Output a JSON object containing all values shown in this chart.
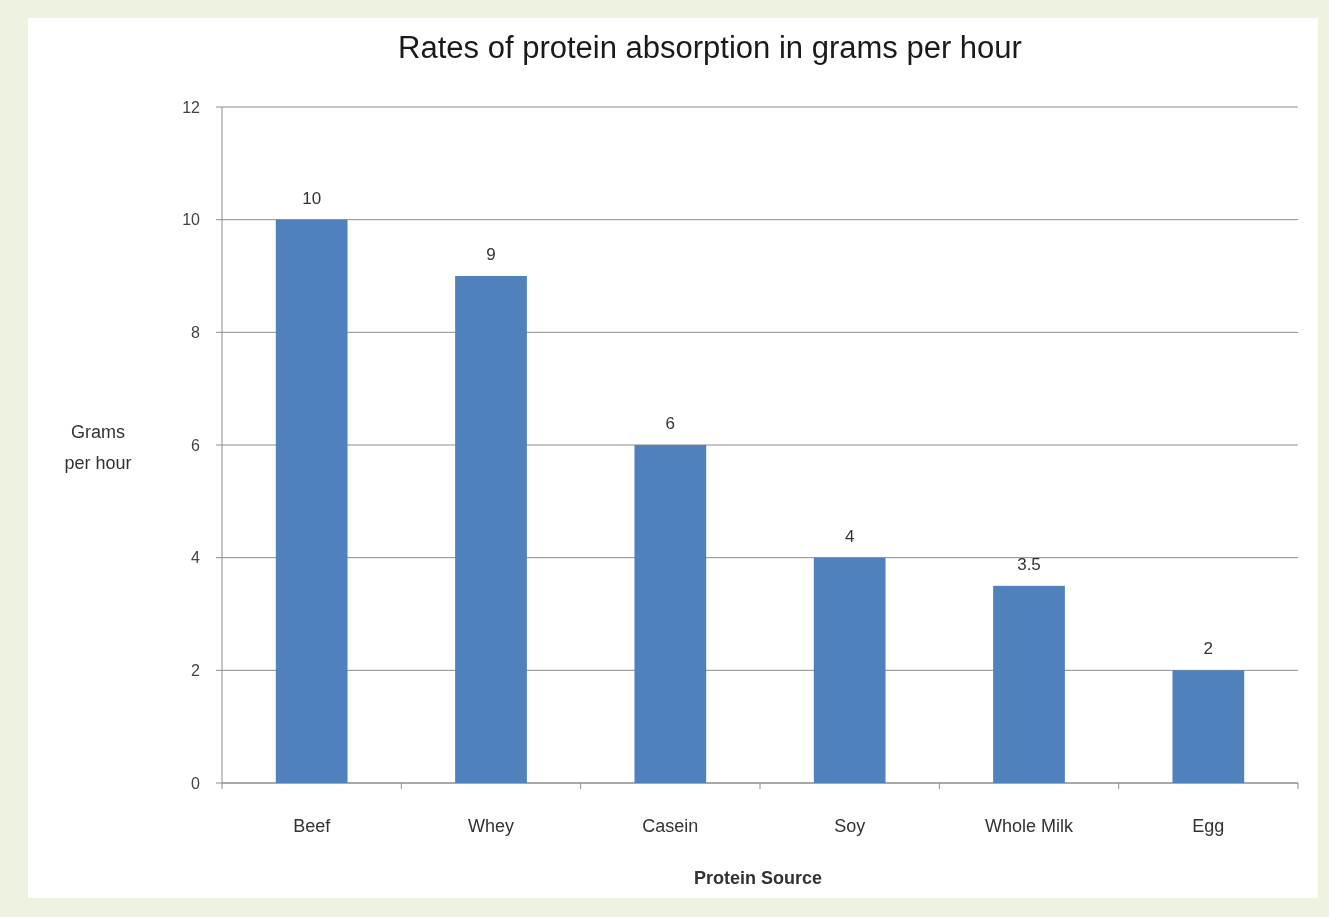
{
  "chart_data": {
    "type": "bar",
    "title": "Rates of protein absorption in grams per hour",
    "xlabel": "Protein Source",
    "ylabel": "Grams per hour",
    "categories": [
      "Beef",
      "Whey",
      "Casein",
      "Soy",
      "Whole Milk",
      "Egg"
    ],
    "values": [
      10,
      9,
      6,
      4,
      3.5,
      2
    ],
    "color": "#4f81bd",
    "ylim": [
      0,
      12
    ],
    "yticks": [
      0,
      2,
      4,
      6,
      8,
      10,
      12
    ],
    "grid": "y",
    "data_labels": true
  }
}
